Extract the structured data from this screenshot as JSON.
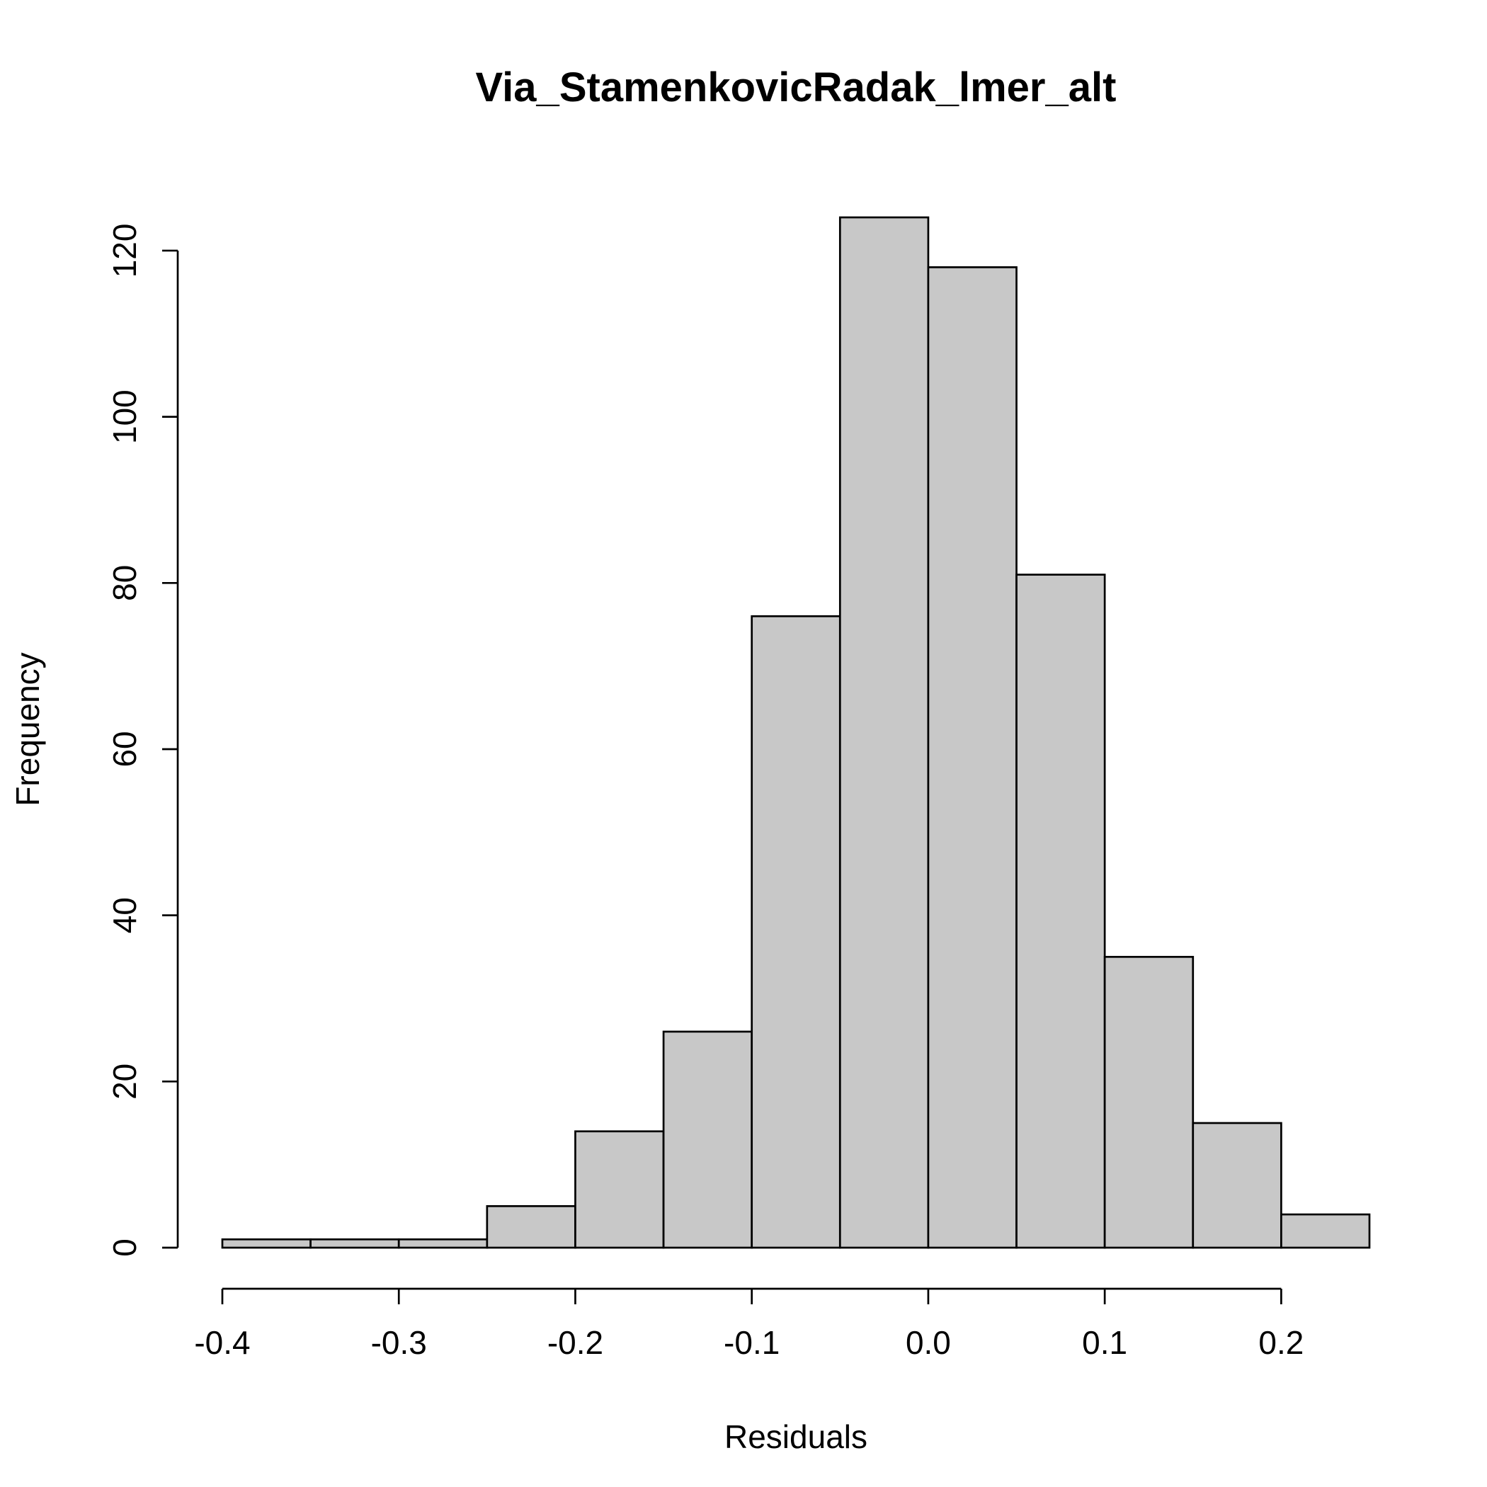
{
  "chart_data": {
    "type": "bar",
    "subtype": "histogram",
    "title": "Via_StamenkovicRadak_lmer_alt",
    "xlabel": "Residuals",
    "ylabel": "Frequency",
    "bin_edges": [
      -0.4,
      -0.35,
      -0.3,
      -0.25,
      -0.2,
      -0.15,
      -0.1,
      -0.05,
      0.0,
      0.05,
      0.1,
      0.15,
      0.2,
      0.25
    ],
    "values": [
      1,
      1,
      1,
      5,
      14,
      26,
      76,
      124,
      118,
      81,
      35,
      15,
      4
    ],
    "xlim": [
      -0.4,
      0.25
    ],
    "ylim": [
      0,
      124
    ],
    "x_ticks": [
      -0.4,
      -0.3,
      -0.2,
      -0.1,
      0.0,
      0.1,
      0.2
    ],
    "x_tick_labels": [
      "-0.4",
      "-0.3",
      "-0.2",
      "-0.1",
      "0.0",
      "0.1",
      "0.2"
    ],
    "y_ticks": [
      0,
      20,
      40,
      60,
      80,
      100,
      120
    ],
    "y_tick_labels": [
      "0",
      "20",
      "40",
      "60",
      "80",
      "100",
      "120"
    ],
    "bar_fill": "#c8c8c8",
    "bar_stroke": "#000000",
    "grid": false,
    "legend": "none"
  }
}
